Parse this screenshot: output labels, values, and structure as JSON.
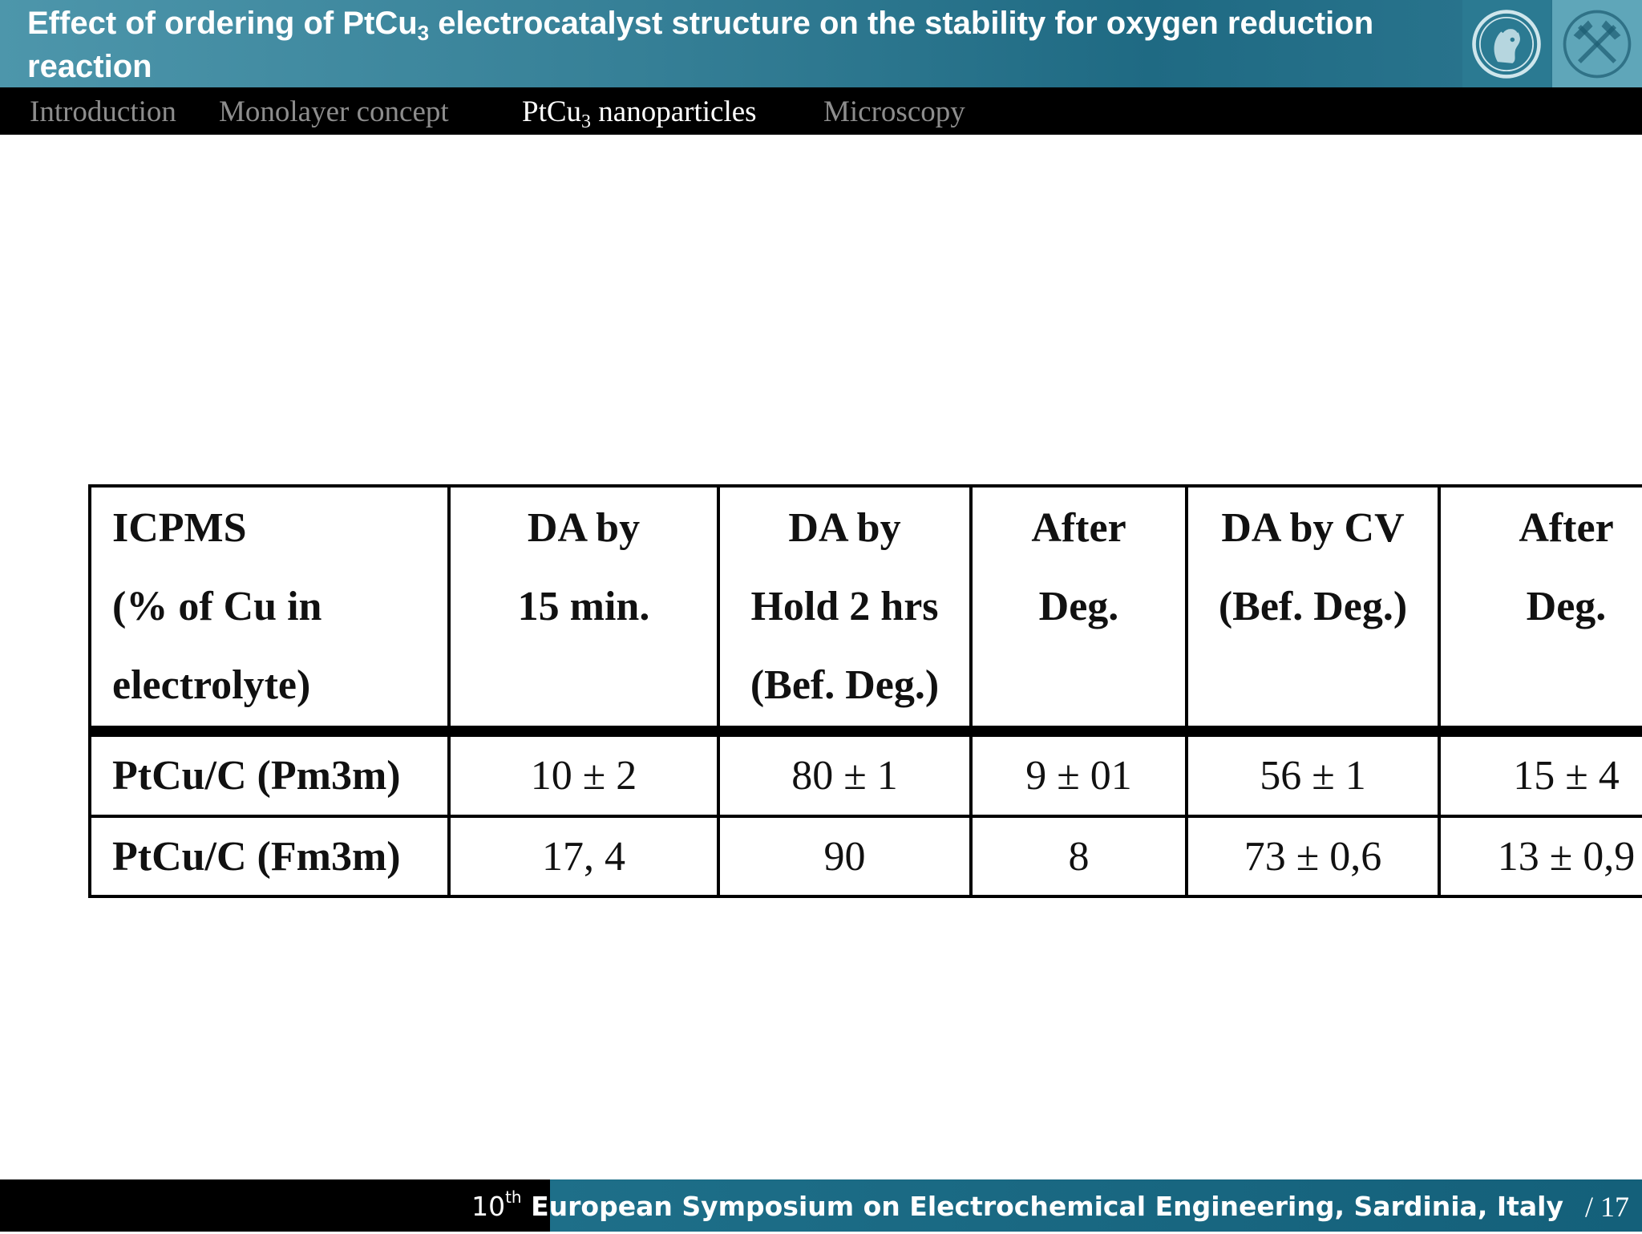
{
  "header": {
    "title": {
      "part1": "Effect of ordering of PtCu",
      "sub": "3",
      "part2": " electrocatalyst structure on the stability for oxygen reduction reaction"
    },
    "logos": [
      "minerva-logo-icon",
      "crossed-tools-logo-icon"
    ]
  },
  "nav": {
    "items": [
      {
        "label": "Introduction",
        "active": false
      },
      {
        "label": "Monolayer concept",
        "active": false
      },
      {
        "label": "PtCu",
        "sub": "3",
        "label_after": " nanoparticles",
        "active": true
      },
      {
        "label": "Microscopy",
        "active": false
      }
    ]
  },
  "table": {
    "headers": [
      [
        "ICPMS",
        "(% of Cu in",
        "electrolyte)"
      ],
      [
        "DA by",
        "15 min."
      ],
      [
        "DA by",
        "Hold 2 hrs",
        "(Bef. Deg.)"
      ],
      [
        "After",
        "Deg."
      ],
      [
        "DA by CV",
        "(Bef. Deg.)"
      ],
      [
        "After",
        "Deg."
      ]
    ],
    "rows": [
      {
        "label": "PtCu/C (Pm3m)",
        "cells": [
          "10 ± 2",
          "80 ± 1",
          "9 ± 01",
          "56 ± 1",
          "15 ± 4"
        ]
      },
      {
        "label": "PtCu/C (Fm3m)",
        "cells": [
          "17, 4",
          "90",
          "8",
          "73 ± 0,6",
          "13 ± 0,9"
        ]
      }
    ]
  },
  "footer": {
    "ordinal_number": "10",
    "ordinal_suffix": "th",
    "event": " European Symposium on Electrochemical Engineering, Sardinia, Italy",
    "page": "/ 17"
  },
  "colors": {
    "header_gradient_start": "#4d96ab",
    "header_gradient_end": "#1f6a83",
    "nav_bg": "#000000",
    "nav_inactive": "#8d8d8d",
    "nav_active": "#ffffff",
    "footer_accent": "#1e6f89"
  }
}
